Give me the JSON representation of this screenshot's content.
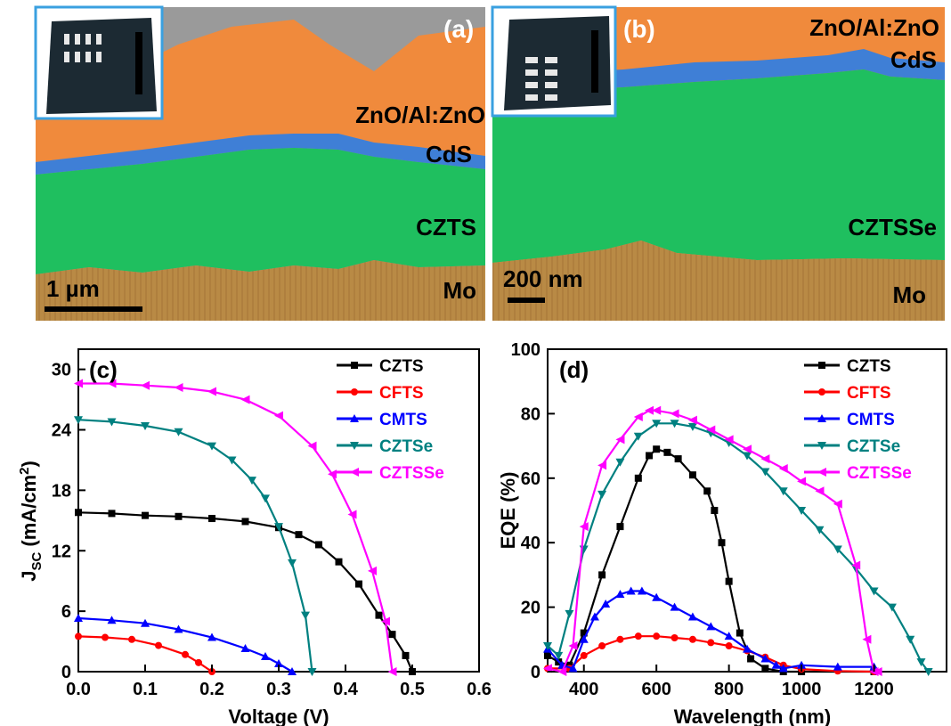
{
  "panels": {
    "a": {
      "tag": "(a)",
      "layers": {
        "top": "ZnO/Al:ZnO",
        "buffer": "CdS",
        "absorber": "CZTS",
        "back": "Mo"
      },
      "scalebar": "1 µm"
    },
    "b": {
      "tag": "(b)",
      "layers": {
        "top": "ZnO/Al:ZnO",
        "buffer": "CdS",
        "absorber": "CZTSSe",
        "back": "Mo"
      },
      "scalebar": "200 nm"
    }
  },
  "colors": {
    "CZTS": "#000000",
    "CFTS": "#ff0000",
    "CMTS": "#0000ff",
    "CZTSe": "#008080",
    "CZTSSe": "#ff00ff",
    "zno": "#f08a3c",
    "cds": "#3f7fd6",
    "absorber": "#1fbf5f",
    "mo": "#b98a45"
  },
  "chart_data": [
    {
      "type": "line",
      "panel_tag": "(c)",
      "xlabel": "Voltage (V)",
      "ylabel": "J",
      "ylabel_sub": "SC",
      "ylabel_rest": " (mA/cm",
      "ylabel_sup": "2",
      "ylabel_end": ")",
      "xlim": [
        0.0,
        0.6
      ],
      "ylim": [
        0,
        32
      ],
      "xticks": [
        "0.0",
        "0.1",
        "0.2",
        "0.3",
        "0.4",
        "0.5",
        "0.6"
      ],
      "yticks": [
        "0",
        "6",
        "12",
        "18",
        "24",
        "30"
      ],
      "legend_position": "top-right",
      "series": [
        {
          "name": "CZTS",
          "x": [
            0,
            0.05,
            0.1,
            0.15,
            0.2,
            0.25,
            0.3,
            0.33,
            0.36,
            0.39,
            0.42,
            0.45,
            0.47,
            0.49,
            0.5
          ],
          "y": [
            15.8,
            15.7,
            15.5,
            15.4,
            15.2,
            14.9,
            14.3,
            13.6,
            12.6,
            10.9,
            8.7,
            5.6,
            3.7,
            1.6,
            0
          ]
        },
        {
          "name": "CFTS",
          "x": [
            0,
            0.04,
            0.08,
            0.12,
            0.16,
            0.18,
            0.2
          ],
          "y": [
            3.5,
            3.4,
            3.2,
            2.6,
            1.7,
            0.9,
            0
          ]
        },
        {
          "name": "CMTS",
          "x": [
            0,
            0.05,
            0.1,
            0.15,
            0.2,
            0.25,
            0.28,
            0.3,
            0.32
          ],
          "y": [
            5.3,
            5.1,
            4.8,
            4.2,
            3.4,
            2.3,
            1.5,
            0.8,
            0
          ]
        },
        {
          "name": "CZTSe",
          "x": [
            0,
            0.05,
            0.1,
            0.15,
            0.2,
            0.23,
            0.26,
            0.28,
            0.3,
            0.32,
            0.34,
            0.35
          ],
          "y": [
            25,
            24.8,
            24.4,
            23.8,
            22.4,
            21,
            19,
            17.2,
            14.4,
            10.8,
            5.6,
            0
          ]
        },
        {
          "name": "CZTSSe",
          "x": [
            0,
            0.05,
            0.1,
            0.15,
            0.2,
            0.25,
            0.3,
            0.35,
            0.38,
            0.41,
            0.44,
            0.46,
            0.47
          ],
          "y": [
            28.6,
            28.6,
            28.4,
            28.2,
            27.8,
            27,
            25.4,
            22.4,
            19.6,
            15.6,
            10,
            5,
            0
          ]
        }
      ]
    },
    {
      "type": "line",
      "panel_tag": "(d)",
      "xlabel": "Wavelength (nm)",
      "ylabel": "EQE (%)",
      "xlim": [
        300,
        1400
      ],
      "ylim": [
        0,
        100
      ],
      "xticks": [
        "400",
        "600",
        "800",
        "1000",
        "1200"
      ],
      "yticks": [
        "0",
        "20",
        "40",
        "60",
        "80",
        "100"
      ],
      "legend_position": "top-right",
      "series": [
        {
          "name": "CZTS",
          "x": [
            300,
            330,
            360,
            400,
            450,
            500,
            550,
            580,
            600,
            630,
            660,
            700,
            740,
            760,
            780,
            800,
            830,
            860,
            900,
            950,
            1000,
            1200
          ],
          "y": [
            5,
            3,
            2,
            12,
            30,
            45,
            60,
            67,
            69,
            68,
            66,
            61,
            56,
            50,
            40,
            28,
            12,
            4,
            1,
            0,
            0,
            0
          ]
        },
        {
          "name": "CFTS",
          "x": [
            300,
            360,
            400,
            450,
            500,
            550,
            600,
            650,
            700,
            750,
            800,
            850,
            900,
            950,
            1000,
            1100,
            1200
          ],
          "y": [
            1,
            1,
            5,
            8,
            10,
            11,
            11,
            10.5,
            10,
            9,
            8,
            6.5,
            4.5,
            2,
            0.8,
            0.2,
            0
          ]
        },
        {
          "name": "CMTS",
          "x": [
            300,
            340,
            370,
            400,
            430,
            460,
            500,
            530,
            560,
            600,
            650,
            700,
            750,
            800,
            850,
            900,
            930,
            950,
            1000,
            1100,
            1200
          ],
          "y": [
            7,
            2,
            1,
            10,
            17,
            21,
            24,
            25,
            25,
            23,
            20,
            17,
            14,
            11,
            7,
            4,
            2,
            1,
            2,
            1.5,
            1.5
          ]
        },
        {
          "name": "CZTSe",
          "x": [
            300,
            330,
            360,
            400,
            450,
            500,
            550,
            600,
            650,
            700,
            750,
            800,
            850,
            900,
            950,
            1000,
            1050,
            1100,
            1150,
            1200,
            1250,
            1300,
            1330,
            1350
          ],
          "y": [
            8,
            5,
            18,
            38,
            55,
            65,
            73,
            77,
            77,
            76,
            74,
            71,
            67,
            62,
            56,
            50,
            44,
            38,
            32,
            25,
            20,
            10,
            3,
            0
          ]
        },
        {
          "name": "CZTSSe",
          "x": [
            300,
            340,
            370,
            400,
            450,
            500,
            550,
            580,
            600,
            650,
            700,
            750,
            800,
            850,
            900,
            950,
            1000,
            1050,
            1100,
            1150,
            1180,
            1200,
            1210
          ],
          "y": [
            1,
            0,
            8,
            45,
            64,
            72,
            79,
            81,
            81,
            80,
            78,
            75,
            72,
            69,
            66,
            63,
            59,
            56,
            52,
            33,
            10,
            0,
            0
          ]
        }
      ]
    }
  ]
}
